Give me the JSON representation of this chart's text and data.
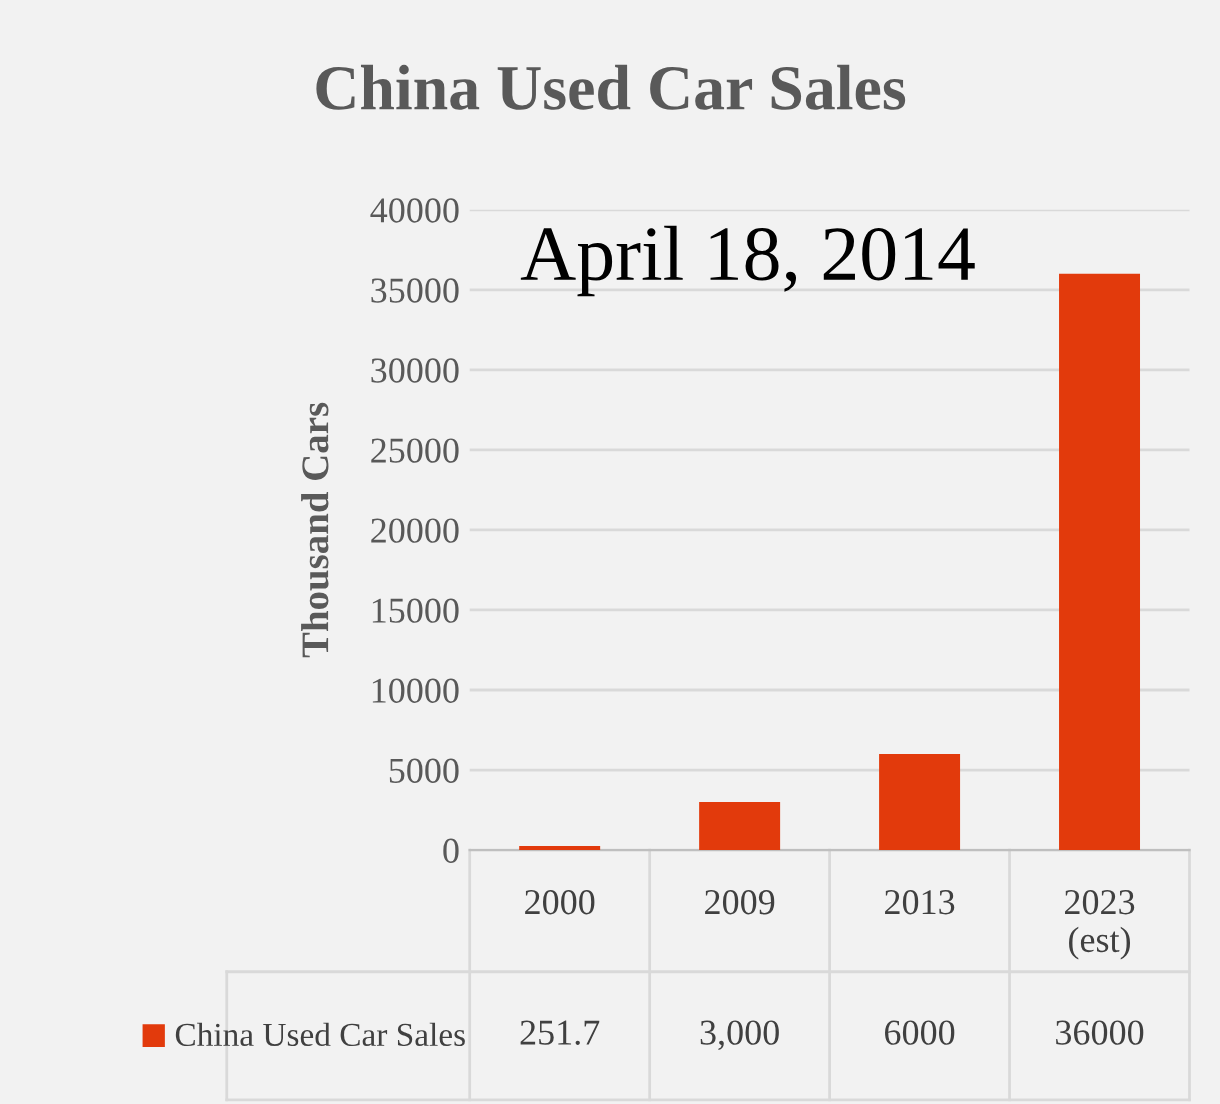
{
  "chart_data": {
    "type": "bar",
    "title": "China Used Car Sales",
    "ylabel": "Thousand Cars",
    "annotations": [
      "April 18, 2014"
    ],
    "categories": [
      "2000",
      "2009",
      "2013",
      "2023\n(est)"
    ],
    "series": [
      {
        "name": "China Used Car Sales",
        "color": "#e23a0c",
        "values": [
          251.7,
          3000,
          6000,
          36000
        ],
        "value_labels": [
          "251.7",
          "3,000",
          "6000",
          "36000"
        ]
      }
    ],
    "ylim": [
      0,
      40000
    ],
    "yticks": [
      0,
      5000,
      10000,
      15000,
      20000,
      25000,
      30000,
      35000,
      40000
    ],
    "grid": "y",
    "legend": "bottom left"
  }
}
